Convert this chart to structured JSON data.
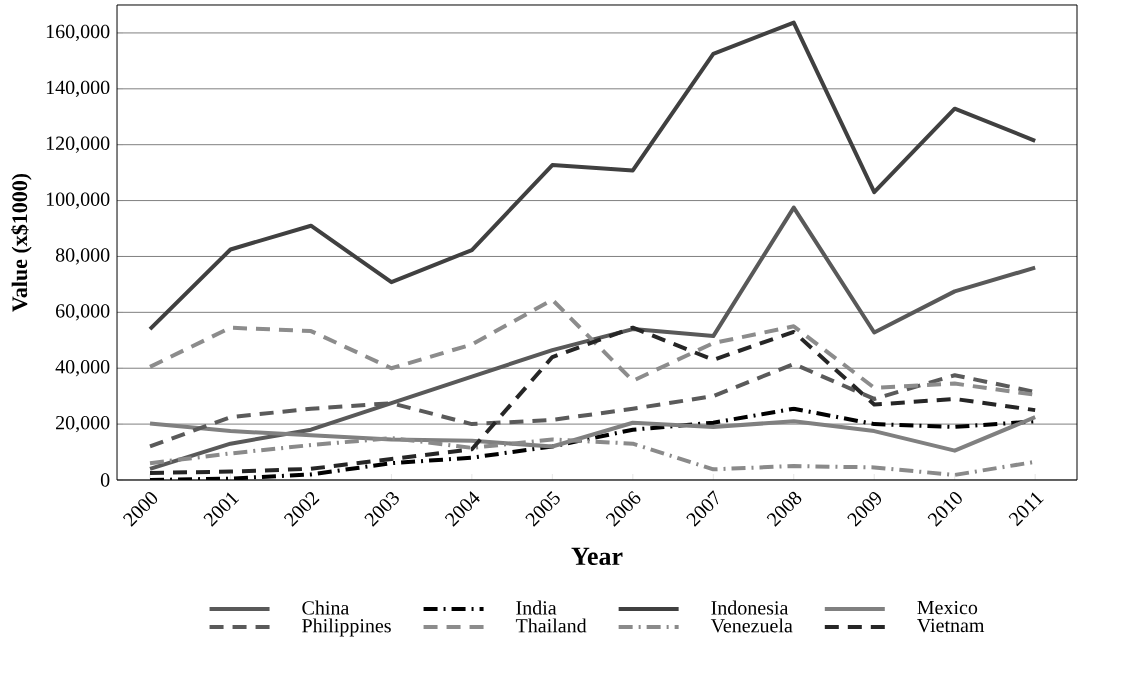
{
  "chart_data": {
    "type": "line",
    "xlabel": "Year",
    "ylabel": "Value (x$1000)",
    "categories": [
      "2000",
      "2001",
      "2002",
      "2003",
      "2004",
      "2005",
      "2006",
      "2007",
      "2008",
      "2009",
      "2010",
      "2011"
    ],
    "series": [
      {
        "name": "China",
        "color": "#595959",
        "line_style": "solid",
        "values": [
          4000,
          13000,
          18000,
          27500,
          37000,
          46500,
          54000,
          51500,
          97500,
          52800,
          67500,
          76000
        ]
      },
      {
        "name": "India",
        "color": "#000000",
        "line_style": "dashdot",
        "values": [
          0,
          500,
          2000,
          6000,
          8000,
          12000,
          18000,
          20500,
          25500,
          20000,
          19000,
          21000
        ]
      },
      {
        "name": "Indonesia",
        "color": "#404040",
        "line_style": "solid",
        "values": [
          54000,
          82500,
          91000,
          70800,
          82300,
          112700,
          110800,
          152500,
          163700,
          103000,
          132900,
          121400
        ]
      },
      {
        "name": "Mexico",
        "color": "#808080",
        "line_style": "solid",
        "values": [
          20200,
          17500,
          16000,
          14500,
          14000,
          12000,
          20500,
          19000,
          21000,
          17500,
          10500,
          22500
        ]
      },
      {
        "name": "Philippines",
        "color": "#5a5a5a",
        "line_style": "dashed",
        "values": [
          12000,
          22500,
          25500,
          27500,
          20000,
          21500,
          25500,
          30000,
          41500,
          29000,
          37500,
          31500
        ]
      },
      {
        "name": "Thailand",
        "color": "#8c8c8c",
        "line_style": "dashed",
        "values": [
          40500,
          54500,
          53300,
          40000,
          48500,
          64500,
          35500,
          49000,
          55000,
          33000,
          34500,
          30500
        ]
      },
      {
        "name": "Venezuela",
        "color": "#8a8a8a",
        "line_style": "dashdot",
        "values": [
          6000,
          9500,
          12500,
          15000,
          11500,
          14500,
          13000,
          3800,
          5000,
          4500,
          1800,
          6500
        ]
      },
      {
        "name": "Vietnam",
        "color": "#262626",
        "line_style": "dashed",
        "values": [
          2500,
          3000,
          4000,
          7500,
          11000,
          44000,
          54500,
          43000,
          53000,
          27000,
          29000,
          25000
        ]
      }
    ],
    "ylim": [
      0,
      170000
    ],
    "yticks": [
      0,
      {
        "value": 20000,
        "label": "20,000"
      },
      {
        "value": 40000,
        "label": "40,000"
      },
      {
        "value": 60000,
        "label": "60,000"
      },
      {
        "value": 80000,
        "label": "80,000"
      },
      {
        "value": 100000,
        "label": "100,000"
      },
      {
        "value": 120000,
        "label": "120,000"
      },
      {
        "value": 140000,
        "label": "140,000"
      },
      {
        "value": 160000,
        "label": "160,000"
      }
    ],
    "grid": "y",
    "legend": "bottom",
    "marker": "none"
  }
}
